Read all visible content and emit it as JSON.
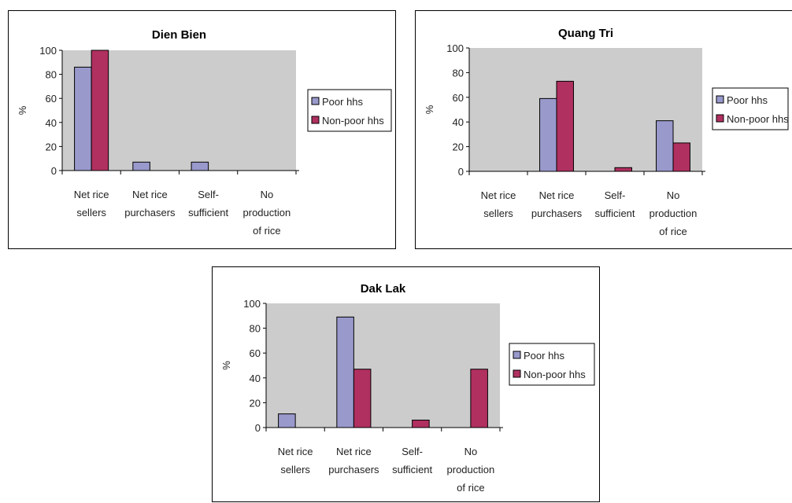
{
  "colors": {
    "poor": "#9999cc",
    "non_poor": "#b03060",
    "plot_bg": "#cccccc"
  },
  "chart_data": [
    {
      "type": "bar",
      "title": "Dien Bien",
      "ylabel": "%",
      "ylim": [
        0,
        100
      ],
      "yticks": [
        0,
        20,
        40,
        60,
        80,
        100
      ],
      "grid": false,
      "legend_position": "right",
      "categories": [
        [
          "Net rice",
          "sellers"
        ],
        [
          "Net rice",
          "purchasers"
        ],
        [
          "Self-",
          "sufficient"
        ],
        [
          "No",
          "production",
          "of rice"
        ]
      ],
      "series": [
        {
          "name": "Poor hhs",
          "values": [
            86,
            7,
            7,
            0
          ]
        },
        {
          "name": "Non-poor hhs",
          "values": [
            100,
            0,
            0,
            0
          ]
        }
      ]
    },
    {
      "type": "bar",
      "title": "Quang Tri",
      "ylabel": "%",
      "ylim": [
        0,
        100
      ],
      "yticks": [
        0,
        20,
        40,
        60,
        80,
        100
      ],
      "grid": false,
      "legend_position": "right",
      "categories": [
        [
          "Net rice",
          "sellers"
        ],
        [
          "Net rice",
          "purchasers"
        ],
        [
          "Self-",
          "sufficient"
        ],
        [
          "No",
          "production",
          "of rice"
        ]
      ],
      "series": [
        {
          "name": "Poor hhs",
          "values": [
            0,
            59,
            0,
            41
          ]
        },
        {
          "name": "Non-poor hhs",
          "values": [
            0,
            73,
            3,
            23
          ]
        }
      ]
    },
    {
      "type": "bar",
      "title": "Dak Lak",
      "ylabel": "%",
      "ylim": [
        0,
        100
      ],
      "yticks": [
        0,
        20,
        40,
        60,
        80,
        100
      ],
      "grid": false,
      "legend_position": "right",
      "categories": [
        [
          "Net rice",
          "sellers"
        ],
        [
          "Net rice",
          "purchasers"
        ],
        [
          "Self-",
          "sufficient"
        ],
        [
          "No",
          "production",
          "of rice"
        ]
      ],
      "series": [
        {
          "name": "Poor hhs",
          "values": [
            11,
            89,
            0,
            0
          ]
        },
        {
          "name": "Non-poor hhs",
          "values": [
            0,
            47,
            6,
            47
          ]
        }
      ]
    }
  ]
}
